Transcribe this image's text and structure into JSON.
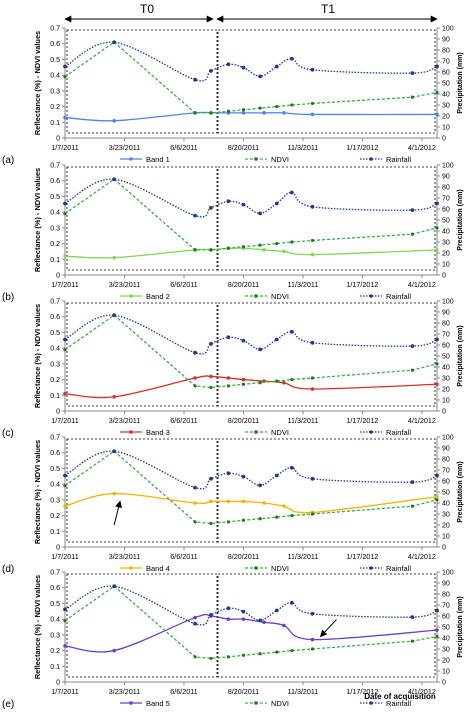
{
  "figure": {
    "period_labels": [
      "T0",
      "T1"
    ],
    "panel_letters": [
      "(a)",
      "(b)",
      "(c)",
      "(d)",
      "(e)"
    ],
    "y_left_label": "Reflectance (%) - NDVI values",
    "y_right_label": "Precipitation (mm)",
    "x_axis_label": "Date of acquisition"
  },
  "chart_data": [
    {
      "type": "line",
      "panel": "(a)",
      "xlabel": "",
      "ylabel": "Reflectance (%) - NDVI values",
      "y2label": "Precipitation (mm)",
      "xlim": [
        "2011-01-07",
        "2012-04-20"
      ],
      "ylim": [
        0,
        0.7
      ],
      "y2lim": [
        0,
        100
      ],
      "x_ticks": [
        "1/7/2011",
        "3/23/2011",
        "6/6/2011",
        "8/20/2011",
        "11/3/2011",
        "1/17/2012",
        "4/1/2012"
      ],
      "grid": false,
      "legend_position": "bottom",
      "series": [
        {
          "name": "Band 1",
          "axis": "left",
          "color": "#4a86e8",
          "line_style": "solid",
          "x": [
            "2011-01-07",
            "2011-03-10",
            "2011-06-20",
            "2011-07-10",
            "2011-08-01",
            "2011-08-20",
            "2011-09-15",
            "2011-10-10",
            "2011-11-15",
            "2012-04-20"
          ],
          "y": [
            0.13,
            0.11,
            0.16,
            0.16,
            0.16,
            0.16,
            0.16,
            0.16,
            0.15,
            0.15
          ]
        },
        {
          "name": "NDVI",
          "axis": "left",
          "color": "#3cb043",
          "line_style": "dashed",
          "x": [
            "2011-01-07",
            "2011-03-10",
            "2011-06-20",
            "2011-07-10",
            "2011-08-01",
            "2011-08-20",
            "2011-09-10",
            "2011-10-01",
            "2011-10-20",
            "2011-11-15",
            "2012-03-20",
            "2012-04-20"
          ],
          "y": [
            0.39,
            0.61,
            0.16,
            0.16,
            0.17,
            0.18,
            0.19,
            0.2,
            0.21,
            0.22,
            0.26,
            0.29
          ]
        },
        {
          "name": "Rainfall",
          "axis": "right",
          "color": "#1f3a93",
          "line_style": "dotted",
          "x": [
            "2011-01-07",
            "2011-03-10",
            "2011-06-20",
            "2011-07-10",
            "2011-08-01",
            "2011-08-20",
            "2011-09-10",
            "2011-10-01",
            "2011-10-20",
            "2011-11-15",
            "2012-03-20",
            "2012-04-20"
          ],
          "y": [
            65,
            87,
            53,
            61,
            67,
            64,
            56,
            65,
            72,
            62,
            59,
            65
          ]
        }
      ]
    },
    {
      "type": "line",
      "panel": "(b)",
      "xlabel": "",
      "ylabel": "Reflectance (%) - NDVI values",
      "y2label": "Precipitation (mm)",
      "xlim": [
        "2011-01-07",
        "2012-04-20"
      ],
      "ylim": [
        0,
        0.7
      ],
      "y2lim": [
        0,
        100
      ],
      "x_ticks": [
        "1/7/2011",
        "3/23/2011",
        "6/6/2011",
        "8/20/2011",
        "11/3/2011",
        "1/17/2012",
        "4/1/2012"
      ],
      "grid": false,
      "legend_position": "bottom",
      "series": [
        {
          "name": "Band 2",
          "axis": "left",
          "color": "#7ed957",
          "line_style": "solid",
          "x": [
            "2011-01-07",
            "2011-03-10",
            "2011-06-20",
            "2011-07-10",
            "2011-08-01",
            "2011-08-20",
            "2011-09-15",
            "2011-10-10",
            "2011-11-15",
            "2012-04-20"
          ],
          "y": [
            0.12,
            0.11,
            0.16,
            0.16,
            0.17,
            0.17,
            0.16,
            0.15,
            0.13,
            0.16
          ]
        },
        {
          "name": "NDVI",
          "axis": "left",
          "color": "#3cb043",
          "line_style": "dashed",
          "x": [
            "2011-01-07",
            "2011-03-10",
            "2011-06-20",
            "2011-07-10",
            "2011-08-01",
            "2011-08-20",
            "2011-09-10",
            "2011-10-01",
            "2011-10-20",
            "2011-11-15",
            "2012-03-20",
            "2012-04-20"
          ],
          "y": [
            0.39,
            0.61,
            0.16,
            0.16,
            0.17,
            0.18,
            0.19,
            0.2,
            0.21,
            0.22,
            0.26,
            0.3
          ]
        },
        {
          "name": "Rainfall",
          "axis": "right",
          "color": "#1f3a93",
          "line_style": "dotted",
          "x": [
            "2011-01-07",
            "2011-03-10",
            "2011-06-20",
            "2011-07-10",
            "2011-08-01",
            "2011-08-20",
            "2011-09-10",
            "2011-10-01",
            "2011-10-20",
            "2011-11-15",
            "2012-03-20",
            "2012-04-20"
          ],
          "y": [
            65,
            87,
            54,
            61,
            67,
            64,
            56,
            65,
            75,
            62,
            59,
            65
          ]
        }
      ]
    },
    {
      "type": "line",
      "panel": "(c)",
      "xlabel": "",
      "ylabel": "Reflectance (%) - NDVI values",
      "y2label": "Precipitation (mm)",
      "xlim": [
        "2011-01-07",
        "2012-04-20"
      ],
      "ylim": [
        0,
        0.7
      ],
      "y2lim": [
        0,
        100
      ],
      "x_ticks": [
        "1/7/2011",
        "3/23/2011",
        "6/6/2011",
        "8/20/2011",
        "11/3/2011",
        "1/17/2012",
        "4/1/2012"
      ],
      "grid": false,
      "legend_position": "bottom",
      "series": [
        {
          "name": "Band 3",
          "axis": "left",
          "color": "#d9302b",
          "line_style": "solid",
          "x": [
            "2011-01-07",
            "2011-03-10",
            "2011-06-20",
            "2011-07-10",
            "2011-08-01",
            "2011-08-20",
            "2011-09-15",
            "2011-10-10",
            "2011-11-15",
            "2012-04-20"
          ],
          "y": [
            0.11,
            0.09,
            0.21,
            0.22,
            0.21,
            0.2,
            0.19,
            0.18,
            0.14,
            0.17
          ]
        },
        {
          "name": "NDVI",
          "axis": "left",
          "color": "#3cb043",
          "line_style": "dashed",
          "x": [
            "2011-01-07",
            "2011-03-10",
            "2011-06-20",
            "2011-07-10",
            "2011-08-01",
            "2011-08-20",
            "2011-09-10",
            "2011-10-01",
            "2011-10-20",
            "2011-11-15",
            "2012-03-20",
            "2012-04-20"
          ],
          "y": [
            0.39,
            0.61,
            0.16,
            0.15,
            0.16,
            0.17,
            0.18,
            0.19,
            0.2,
            0.21,
            0.26,
            0.3
          ]
        },
        {
          "name": "Rainfall",
          "axis": "right",
          "color": "#1f3a93",
          "line_style": "dotted",
          "x": [
            "2011-01-07",
            "2011-03-10",
            "2011-06-20",
            "2011-07-10",
            "2011-08-01",
            "2011-08-20",
            "2011-09-10",
            "2011-10-01",
            "2011-10-20",
            "2011-11-15",
            "2012-03-20",
            "2012-04-20"
          ],
          "y": [
            65,
            87,
            53,
            61,
            67,
            64,
            56,
            65,
            72,
            62,
            59,
            65
          ]
        }
      ]
    },
    {
      "type": "line",
      "panel": "(d)",
      "xlabel": "",
      "ylabel": "Reflectance (%) - NDVI values",
      "y2label": "Precipitation (mm)",
      "xlim": [
        "2011-01-07",
        "2012-04-20"
      ],
      "ylim": [
        0,
        0.7
      ],
      "y2lim": [
        0,
        100
      ],
      "x_ticks": [
        "1/7/2011",
        "3/23/2011",
        "6/6/2011",
        "8/20/2011",
        "11/3/2011",
        "1/17/2012",
        "4/1/2012"
      ],
      "grid": false,
      "legend_position": "bottom",
      "series": [
        {
          "name": "Band 4",
          "axis": "left",
          "color": "#f5b400",
          "line_style": "solid",
          "x": [
            "2011-01-07",
            "2011-03-10",
            "2011-06-20",
            "2011-07-10",
            "2011-08-01",
            "2011-08-20",
            "2011-09-15",
            "2011-10-10",
            "2011-11-15",
            "2012-04-20"
          ],
          "y": [
            0.26,
            0.34,
            0.28,
            0.29,
            0.29,
            0.29,
            0.28,
            0.26,
            0.22,
            0.32
          ]
        },
        {
          "name": "NDVI",
          "axis": "left",
          "color": "#3cb043",
          "line_style": "dashed",
          "x": [
            "2011-01-07",
            "2011-03-10",
            "2011-06-20",
            "2011-07-10",
            "2011-08-01",
            "2011-08-20",
            "2011-09-10",
            "2011-10-01",
            "2011-10-20",
            "2011-11-15",
            "2012-03-20",
            "2012-04-20"
          ],
          "y": [
            0.39,
            0.61,
            0.16,
            0.15,
            0.16,
            0.17,
            0.18,
            0.19,
            0.2,
            0.21,
            0.26,
            0.3
          ]
        },
        {
          "name": "Rainfall",
          "axis": "right",
          "color": "#1f3a93",
          "line_style": "dotted",
          "x": [
            "2011-01-07",
            "2011-03-10",
            "2011-06-20",
            "2011-07-10",
            "2011-08-01",
            "2011-08-20",
            "2011-09-10",
            "2011-10-01",
            "2011-10-20",
            "2011-11-15",
            "2012-03-20",
            "2012-04-20"
          ],
          "y": [
            65,
            87,
            54,
            62,
            67,
            64,
            56,
            65,
            72,
            62,
            59,
            65
          ]
        }
      ],
      "annotations": [
        {
          "type": "arrow",
          "x": "2011-03-20",
          "y": 0.33
        }
      ]
    },
    {
      "type": "line",
      "panel": "(e)",
      "xlabel": "Date of acquisition",
      "ylabel": "Reflectance (%) - NDVI values",
      "y2label": "Precipitation (mm)",
      "xlim": [
        "2011-01-07",
        "2012-04-20"
      ],
      "ylim": [
        0,
        0.7
      ],
      "y2lim": [
        0,
        100
      ],
      "x_ticks": [
        "1/7/2011",
        "3/23/2011",
        "6/6/2011",
        "8/20/2011",
        "11/3/2011",
        "1/17/2012",
        "4/1/2012"
      ],
      "grid": false,
      "legend_position": "bottom",
      "series": [
        {
          "name": "Band 5",
          "axis": "left",
          "color": "#6a3fc8",
          "line_style": "solid",
          "x": [
            "2011-01-07",
            "2011-03-10",
            "2011-06-20",
            "2011-07-10",
            "2011-08-01",
            "2011-08-20",
            "2011-09-15",
            "2011-10-10",
            "2011-11-15",
            "2012-04-20"
          ],
          "y": [
            0.23,
            0.2,
            0.41,
            0.42,
            0.4,
            0.4,
            0.38,
            0.36,
            0.27,
            0.33
          ]
        },
        {
          "name": "NDVI",
          "axis": "left",
          "color": "#3cb043",
          "line_style": "dashed",
          "x": [
            "2011-01-07",
            "2011-03-10",
            "2011-06-20",
            "2011-07-10",
            "2011-08-01",
            "2011-08-20",
            "2011-09-10",
            "2011-10-01",
            "2011-10-20",
            "2011-11-15",
            "2012-03-20",
            "2012-04-20"
          ],
          "y": [
            0.39,
            0.61,
            0.16,
            0.15,
            0.16,
            0.17,
            0.18,
            0.19,
            0.2,
            0.21,
            0.26,
            0.29
          ]
        },
        {
          "name": "Rainfall",
          "axis": "right",
          "color": "#1f3a93",
          "line_style": "dotted",
          "x": [
            "2011-01-07",
            "2011-03-10",
            "2011-06-20",
            "2011-07-10",
            "2011-08-01",
            "2011-08-20",
            "2011-09-10",
            "2011-10-01",
            "2011-10-20",
            "2011-11-15",
            "2012-03-20",
            "2012-04-20"
          ],
          "y": [
            66,
            87,
            53,
            61,
            67,
            64,
            56,
            65,
            72,
            62,
            59,
            65
          ]
        }
      ],
      "annotations": [
        {
          "type": "arrow",
          "x": "2011-11-20",
          "y": 0.27
        }
      ]
    }
  ]
}
